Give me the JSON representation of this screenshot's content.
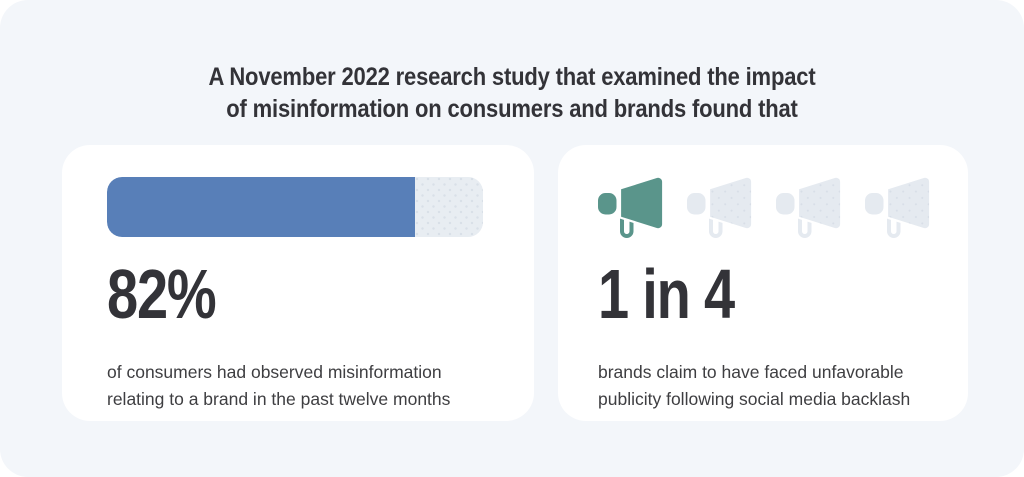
{
  "canvas": {
    "outer_background": "#FFFFFF",
    "panel_background": "#F3F6FA",
    "text_color_primary": "#333338",
    "text_color_body": "#3E3E41"
  },
  "title": {
    "line1": "A November 2022 research study that examined the impact",
    "line2": "of misinformation on consumers and brands found that"
  },
  "cards": [
    {
      "name": "consumer-misinformation-stat",
      "stat_value": "82%",
      "desc_line1": "of consumers had observed misinformation",
      "desc_line2": "relating to a brand in the past twelve months",
      "bar": {
        "fill_percent": 82,
        "fill_color": "#587FB8",
        "track_color": "#E8EDF2",
        "track_dot_color": "#D9E0E8"
      }
    },
    {
      "name": "brand-backlash-stat",
      "stat_value": "1 in 4",
      "desc_line1": "brands claim to have faced unfavorable",
      "desc_line2": "publicity following social media backlash",
      "pictogram": {
        "icon": "megaphone-icon",
        "total": 4,
        "highlighted": 1,
        "active_color": "#5A958B",
        "inactive_color": "#E5EAF0",
        "inactive_dot_color": "#D7DEE7"
      }
    }
  ],
  "chart_data": [
    {
      "type": "bar",
      "orientation": "horizontal",
      "title": "Consumers who observed misinformation",
      "categories": [
        "consumers who had observed misinformation relating to a brand in the past twelve months"
      ],
      "values": [
        82
      ],
      "unit": "%",
      "xlim": [
        0,
        100
      ],
      "data_label": "82%",
      "bar_color": "#587FB8",
      "track_color": "#E8EDF2",
      "grid": false,
      "legend": false
    },
    {
      "type": "bar",
      "style": "pictogram",
      "icon": "megaphone",
      "title": "Brands facing unfavorable publicity",
      "categories": [
        "brands that claim to have faced unfavorable publicity following social media backlash"
      ],
      "values": [
        25
      ],
      "unit": "%",
      "fraction_label": "1 in 4",
      "icons_total": 4,
      "icons_highlighted": 1,
      "highlight_color": "#5A958B",
      "muted_color": "#E5EAF0",
      "grid": false,
      "legend": false
    }
  ]
}
